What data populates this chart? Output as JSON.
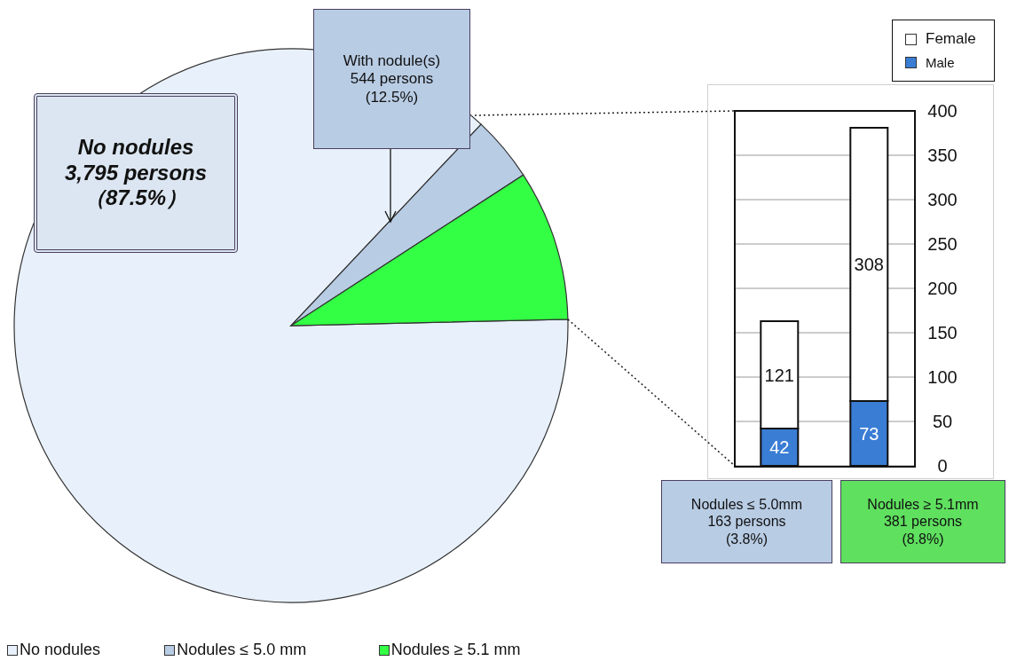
{
  "chart_data": [
    {
      "type": "pie",
      "categories": [
        "No nodules",
        "Nodules ≤ 5.0 mm",
        "Nodules ≥ 5.1 mm"
      ],
      "values": [
        87.4,
        3.8,
        8.8
      ],
      "colors": [
        "#e8f1fb",
        "#b8cce4",
        "#33ff44"
      ],
      "legend": "bottom",
      "annotations": [
        "No nodules\n3,795 persons\n（87.5%）",
        "With nodule(s)\n544 persons\n(12.5%)"
      ]
    },
    {
      "type": "bar",
      "stacked": true,
      "categories": [
        null,
        null
      ],
      "series": [
        {
          "name": "Male",
          "color": "#3a7dd4",
          "values": [
            42,
            73
          ]
        },
        {
          "name": "Female",
          "color": "#ffffff",
          "values": [
            121,
            308
          ]
        }
      ],
      "ylim": [
        0,
        400
      ],
      "yticks": [
        0,
        50,
        100,
        150,
        200,
        250,
        300,
        350,
        400
      ],
      "grid": "y",
      "legend": "top right",
      "data_labels": true,
      "annotations": [
        "Nodules ≤ 5.0mm\n163 persons\n(3.8%)",
        "Nodules ≥ 5.1mm\n381 persons\n(8.8%)"
      ]
    }
  ]
}
